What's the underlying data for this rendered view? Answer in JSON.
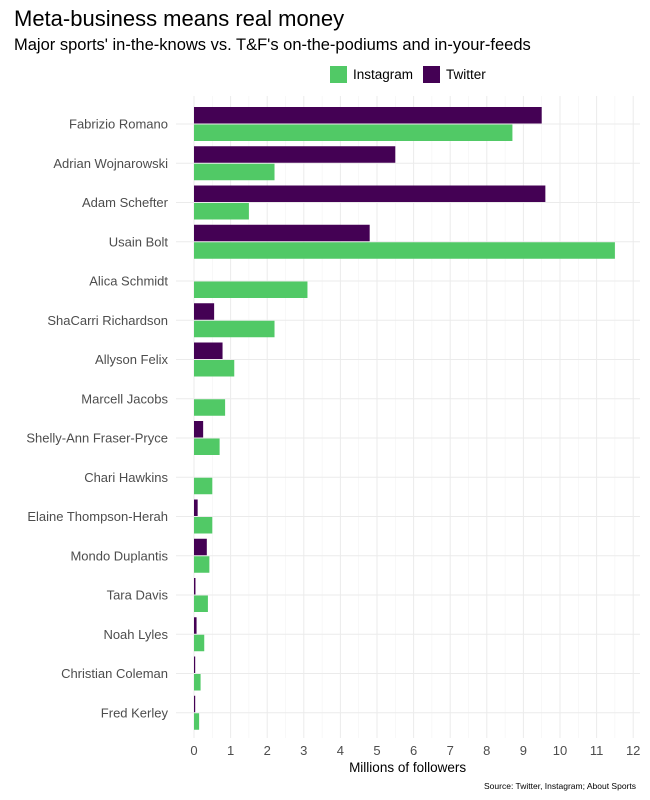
{
  "chart_data": {
    "type": "bar",
    "orientation": "horizontal",
    "title": "Meta-business means real money",
    "subtitle": "Major sports' in-the-knows vs. T&F's on-the-podiums and in-your-feeds",
    "xlabel": "Millions of followers",
    "ylabel": "",
    "xlim": [
      0,
      12
    ],
    "x_ticks": [
      0,
      1,
      2,
      3,
      4,
      5,
      6,
      7,
      8,
      9,
      10,
      11,
      12
    ],
    "grid": true,
    "legend_position": "top",
    "source": "Source: Twitter, Instagram; About Sports",
    "categories": [
      "Fabrizio Romano",
      "Adrian Wojnarowski",
      "Adam Schefter",
      "Usain Bolt",
      "Alica Schmidt",
      "ShaCarri Richardson",
      "Allyson Felix",
      "Marcell Jacobs",
      "Shelly-Ann Fraser-Pryce",
      "Chari Hawkins",
      "Elaine Thompson-Herah",
      "Mondo Duplantis",
      "Tara Davis",
      "Noah Lyles",
      "Christian Coleman",
      "Fred Kerley"
    ],
    "series": [
      {
        "name": "Instagram",
        "color": "#51c966",
        "values": [
          8.7,
          2.2,
          1.5,
          11.5,
          3.1,
          2.2,
          1.1,
          0.85,
          0.7,
          0.5,
          0.5,
          0.42,
          0.38,
          0.28,
          0.18,
          0.14
        ]
      },
      {
        "name": "Twitter",
        "color": "#440154",
        "values": [
          9.5,
          5.5,
          9.6,
          4.8,
          0,
          0.55,
          0.78,
          0,
          0.25,
          0,
          0.1,
          0.35,
          0.04,
          0.07,
          0.03,
          0.03
        ]
      }
    ]
  }
}
